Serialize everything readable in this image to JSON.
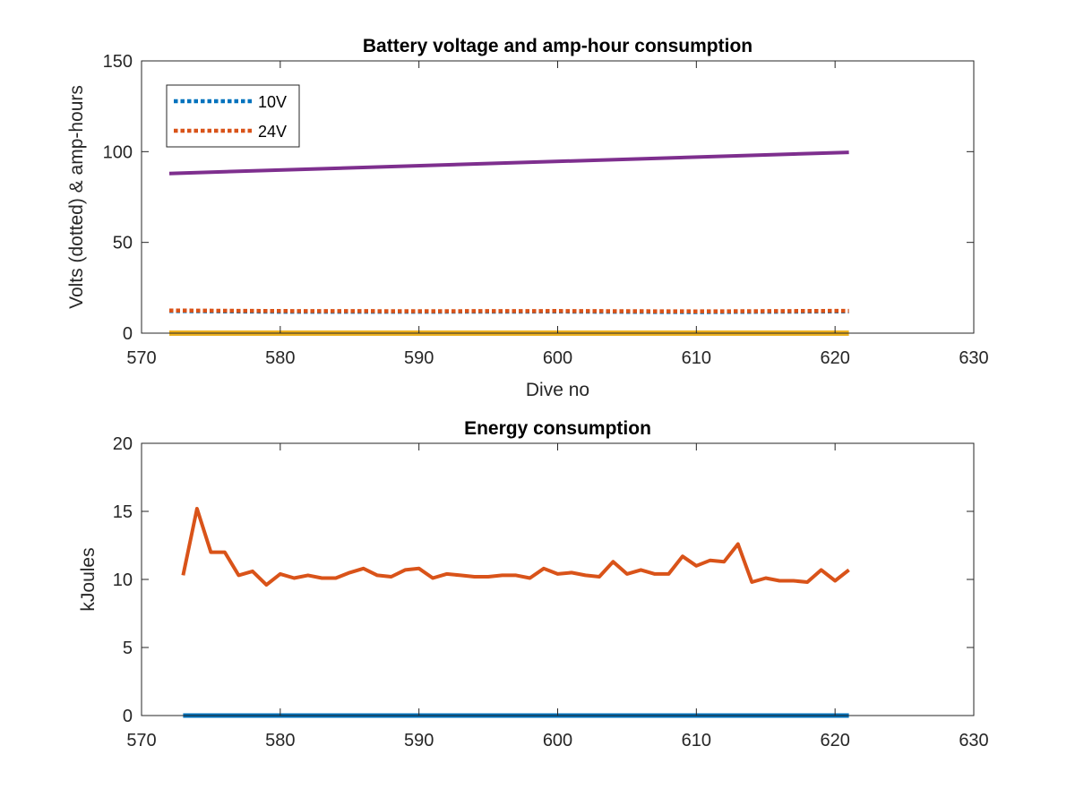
{
  "chart_data": [
    {
      "type": "line",
      "title": "Battery voltage and amp-hour consumption",
      "xlabel": "Dive no",
      "ylabel": "Volts (dotted) & amp-hours",
      "xlim": [
        570,
        630
      ],
      "ylim": [
        0,
        150
      ],
      "xticks": [
        "570",
        "580",
        "590",
        "600",
        "610",
        "620",
        "630"
      ],
      "yticks": [
        "0",
        "50",
        "100",
        "150"
      ],
      "grid": false,
      "legend": {
        "placement": "top-left",
        "entries": [
          "10V",
          "24V"
        ]
      },
      "series": [
        {
          "name": "10V",
          "style": "dotted",
          "color": "#0072BD",
          "x": [
            572,
            580,
            590,
            600,
            610,
            621
          ],
          "y": [
            12.2,
            11.8,
            11.8,
            11.9,
            11.6,
            12.0
          ]
        },
        {
          "name": "24V",
          "style": "dotted",
          "color": "#D95319",
          "x": [
            572,
            580,
            590,
            600,
            610,
            621
          ],
          "y": [
            12.5,
            12.2,
            12.1,
            12.2,
            12.0,
            12.3
          ]
        },
        {
          "style": "solid",
          "color": "#7E2F8E",
          "x": [
            572,
            621
          ],
          "y": [
            88,
            99.6
          ]
        },
        {
          "style": "solid",
          "color": "#EDB120",
          "x": [
            572,
            621
          ],
          "y": [
            0,
            0
          ]
        }
      ]
    },
    {
      "type": "line",
      "title": "Energy consumption",
      "xlabel": "",
      "ylabel": "kJoules",
      "xlim": [
        570,
        630
      ],
      "ylim": [
        0,
        20
      ],
      "xticks": [
        "570",
        "580",
        "590",
        "600",
        "610",
        "620",
        "630"
      ],
      "yticks": [
        "0",
        "5",
        "10",
        "15",
        "20"
      ],
      "grid": false,
      "series": [
        {
          "style": "solid",
          "color": "#D95319",
          "x": [
            573,
            574,
            575,
            576,
            577,
            578,
            579,
            580,
            581,
            582,
            583,
            584,
            585,
            586,
            587,
            588,
            589,
            590,
            591,
            592,
            593,
            594,
            595,
            596,
            597,
            598,
            599,
            600,
            601,
            602,
            603,
            604,
            605,
            606,
            607,
            608,
            609,
            610,
            611,
            612,
            613,
            614,
            615,
            616,
            617,
            618,
            619,
            620,
            621
          ],
          "y": [
            10.3,
            15.2,
            12.0,
            12.0,
            10.3,
            10.6,
            9.6,
            10.4,
            10.1,
            10.3,
            10.1,
            10.1,
            10.5,
            10.8,
            10.3,
            10.2,
            10.7,
            10.8,
            10.1,
            10.4,
            10.3,
            10.2,
            10.2,
            10.3,
            10.3,
            10.1,
            10.8,
            10.4,
            10.5,
            10.3,
            10.2,
            11.3,
            10.4,
            10.7,
            10.4,
            10.4,
            11.7,
            11.0,
            11.4,
            11.3,
            12.6,
            9.8,
            10.1,
            9.9,
            9.9,
            9.8,
            10.7,
            9.9,
            10.7
          ]
        },
        {
          "style": "solid",
          "color": "#0072BD",
          "x": [
            573,
            621
          ],
          "y": [
            0,
            0
          ]
        }
      ]
    }
  ]
}
